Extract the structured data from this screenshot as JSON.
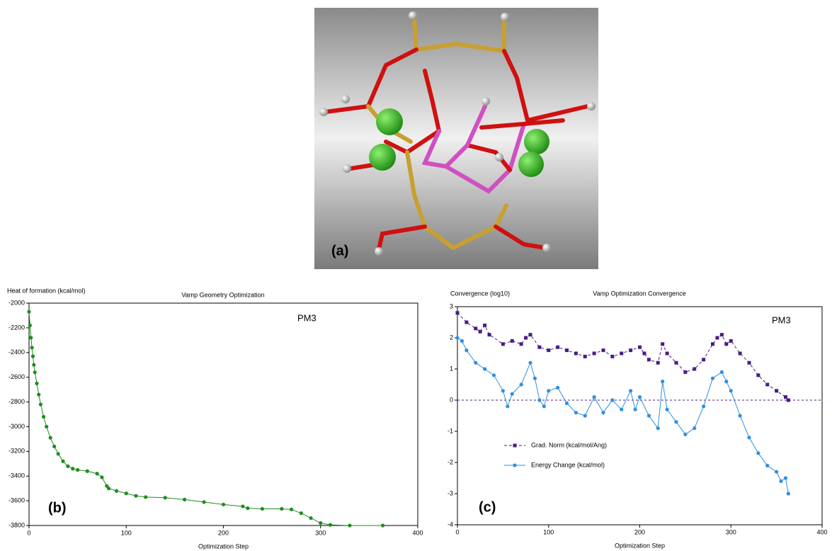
{
  "image": {
    "label": "(a)"
  },
  "chart_data": [
    {
      "type": "line",
      "title": "Vamp Geometry Optimization",
      "ylabel": "Heat of formation (kcal/mol)",
      "xlabel": "Optimization Step",
      "annotation": "PM3",
      "panel_label": "(b)",
      "color": "#1e8c1e",
      "x": [
        0,
        1,
        2,
        3,
        4,
        5,
        6,
        8,
        10,
        12,
        15,
        18,
        22,
        26,
        30,
        35,
        40,
        45,
        50,
        60,
        70,
        75,
        80,
        82,
        90,
        100,
        110,
        120,
        140,
        160,
        180,
        200,
        220,
        225,
        240,
        260,
        270,
        280,
        290,
        300,
        310,
        330,
        364
      ],
      "values": [
        -2070,
        -2180,
        -2280,
        -2360,
        -2430,
        -2500,
        -2560,
        -2650,
        -2740,
        -2820,
        -2920,
        -3000,
        -3090,
        -3160,
        -3220,
        -3280,
        -3320,
        -3340,
        -3350,
        -3360,
        -3380,
        -3410,
        -3480,
        -3500,
        -3520,
        -3540,
        -3560,
        -3570,
        -3575,
        -3590,
        -3610,
        -3630,
        -3645,
        -3660,
        -3665,
        -3665,
        -3670,
        -3700,
        -3740,
        -3780,
        -3795,
        -3800,
        -3800
      ],
      "xlim": [
        0,
        400
      ],
      "xticks": [
        0,
        100,
        200,
        300,
        400
      ],
      "ylim": [
        -3800,
        -2000
      ],
      "yticks": [
        -2000,
        -2200,
        -2400,
        -2600,
        -2800,
        -3000,
        -3200,
        -3400,
        -3600,
        -3800
      ]
    },
    {
      "type": "line",
      "title": "Vamp Optimization Convergence",
      "ylabel": "Convergence (log10)",
      "xlabel": "Optimization Step",
      "annotation": "PM3",
      "panel_label": "(c)",
      "hline": 0,
      "legend": "lower left",
      "series": [
        {
          "name": "Grad. Norm (kcal/mol/Ang)",
          "color": "#4b1a8a",
          "marker": "square",
          "dashed": true,
          "x": [
            0,
            10,
            20,
            25,
            30,
            35,
            50,
            60,
            70,
            75,
            80,
            90,
            100,
            110,
            120,
            130,
            140,
            150,
            160,
            170,
            180,
            190,
            200,
            205,
            210,
            220,
            225,
            230,
            240,
            250,
            260,
            270,
            280,
            285,
            290,
            295,
            300,
            310,
            320,
            330,
            340,
            350,
            360,
            363
          ],
          "values": [
            2.8,
            2.5,
            2.3,
            2.2,
            2.4,
            2.1,
            1.8,
            1.9,
            1.8,
            2.0,
            2.1,
            1.7,
            1.6,
            1.7,
            1.6,
            1.5,
            1.4,
            1.5,
            1.6,
            1.4,
            1.5,
            1.6,
            1.7,
            1.5,
            1.3,
            1.2,
            1.8,
            1.5,
            1.2,
            0.9,
            1.0,
            1.3,
            1.8,
            2.0,
            2.1,
            1.8,
            1.9,
            1.5,
            1.2,
            0.8,
            0.5,
            0.3,
            0.1,
            0.0
          ]
        },
        {
          "name": "Energy Change (kcal/mol)",
          "color": "#2f8fe0",
          "marker": "circle",
          "dashed": false,
          "x": [
            0,
            5,
            10,
            20,
            30,
            40,
            50,
            55,
            60,
            70,
            80,
            85,
            90,
            95,
            100,
            110,
            120,
            130,
            140,
            150,
            160,
            170,
            180,
            190,
            195,
            200,
            210,
            220,
            225,
            230,
            240,
            250,
            260,
            270,
            280,
            290,
            295,
            300,
            310,
            320,
            330,
            340,
            350,
            355,
            360,
            363
          ],
          "values": [
            2.0,
            1.9,
            1.6,
            1.2,
            1.0,
            0.8,
            0.3,
            -0.2,
            0.2,
            0.5,
            1.2,
            0.7,
            0.0,
            -0.2,
            0.3,
            0.4,
            -0.1,
            -0.4,
            -0.5,
            0.1,
            -0.4,
            0.0,
            -0.3,
            0.3,
            -0.3,
            0.1,
            -0.5,
            -0.9,
            0.6,
            -0.3,
            -0.7,
            -1.1,
            -0.9,
            -0.2,
            0.7,
            0.9,
            0.6,
            0.3,
            -0.5,
            -1.2,
            -1.7,
            -2.1,
            -2.3,
            -2.6,
            -2.5,
            -3.0
          ]
        }
      ],
      "xlim": [
        0,
        400
      ],
      "xticks": [
        0,
        100,
        200,
        300,
        400
      ],
      "ylim": [
        -4,
        3
      ],
      "yticks": [
        -4,
        -3,
        -2,
        -1,
        0,
        1,
        2,
        3
      ]
    }
  ]
}
